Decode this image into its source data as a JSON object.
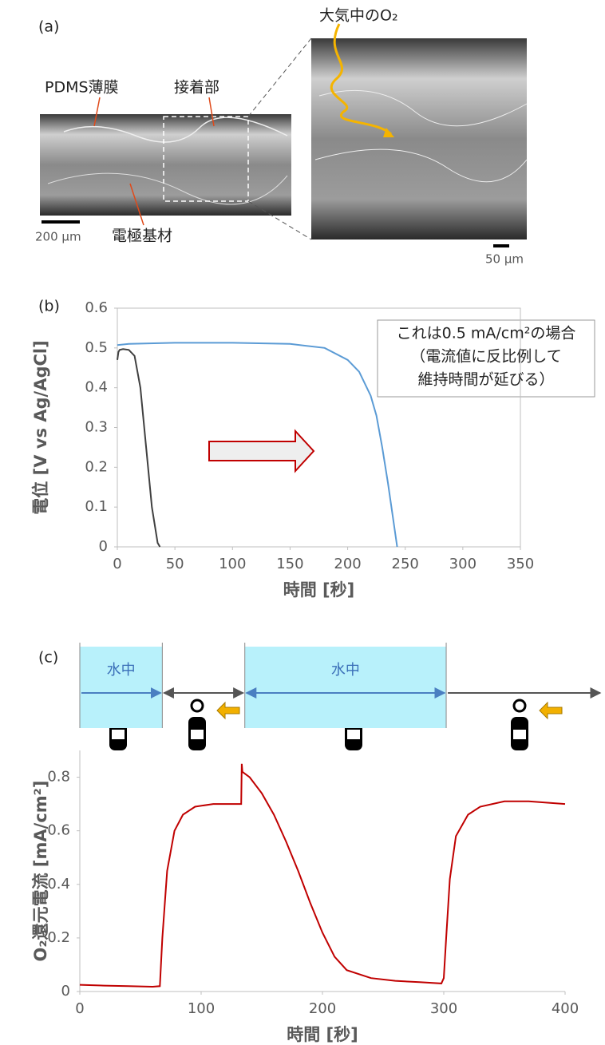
{
  "panel_a": {
    "label": "(a)",
    "film_label": "PDMS薄膜",
    "bond_label": "接着部",
    "substrate_label": "電極基材",
    "oxygen_label": "大気中のO₂",
    "scale_left": "200 µm",
    "scale_right": "50 µm"
  },
  "chart_data": [
    {
      "type": "line",
      "label": "(b)",
      "xlabel": "時間 [秒]",
      "ylabel": "電位 [V vs Ag/AgCl]",
      "annotation": [
        "これは0.5 mA/cm²の場合",
        "（電流値に反比例して",
        "維持時間が延びる）"
      ],
      "xlim": [
        0,
        350
      ],
      "ylim": [
        0,
        0.6
      ],
      "xticks": [
        0,
        50,
        100,
        150,
        200,
        250,
        300,
        350
      ],
      "yticks": [
        0,
        0.1,
        0.2,
        0.3,
        0.4,
        0.5,
        0.6
      ],
      "grid": false,
      "frame": true,
      "series": [
        {
          "color": "#404040",
          "x": [
            0,
            1,
            2,
            5,
            10,
            15,
            20,
            25,
            30,
            35,
            37
          ],
          "values": [
            0.47,
            0.49,
            0.495,
            0.497,
            0.495,
            0.48,
            0.4,
            0.25,
            0.1,
            0.01,
            0
          ]
        },
        {
          "color": "#5b9bd5",
          "x": [
            0,
            10,
            50,
            100,
            150,
            180,
            200,
            210,
            220,
            225,
            230,
            235,
            240,
            243
          ],
          "values": [
            0.507,
            0.51,
            0.513,
            0.513,
            0.51,
            0.5,
            0.47,
            0.44,
            0.38,
            0.33,
            0.25,
            0.16,
            0.06,
            0
          ]
        }
      ]
    },
    {
      "type": "line",
      "label": "(c)",
      "xlabel": "時間 [秒]",
      "ylabel": "O₂還元電流 [mA/cm²]",
      "xlim": [
        0,
        400
      ],
      "ylim": [
        0,
        0.9
      ],
      "xticks": [
        0,
        100,
        200,
        300,
        400
      ],
      "yticks": [
        0,
        0.2,
        0.4,
        0.6,
        0.8
      ],
      "grid": false,
      "frame": false,
      "shaded_spans": [
        {
          "start": 0,
          "end": 68,
          "label": "水中"
        },
        {
          "start": 136,
          "end": 302,
          "label": "水中"
        }
      ],
      "series": [
        {
          "color": "#c00000",
          "x": [
            0,
            20,
            40,
            60,
            66,
            68,
            72,
            78,
            85,
            95,
            110,
            125,
            133,
            133.5,
            134,
            140,
            150,
            160,
            170,
            180,
            190,
            200,
            210,
            220,
            240,
            260,
            280,
            298,
            300,
            302,
            305,
            310,
            320,
            330,
            350,
            370,
            400
          ],
          "values": [
            0.025,
            0.022,
            0.02,
            0.018,
            0.02,
            0.2,
            0.45,
            0.6,
            0.66,
            0.69,
            0.7,
            0.7,
            0.7,
            0.85,
            0.82,
            0.8,
            0.74,
            0.66,
            0.56,
            0.45,
            0.33,
            0.22,
            0.13,
            0.08,
            0.05,
            0.04,
            0.035,
            0.03,
            0.05,
            0.2,
            0.42,
            0.58,
            0.66,
            0.69,
            0.71,
            0.71,
            0.7
          ]
        }
      ]
    }
  ]
}
